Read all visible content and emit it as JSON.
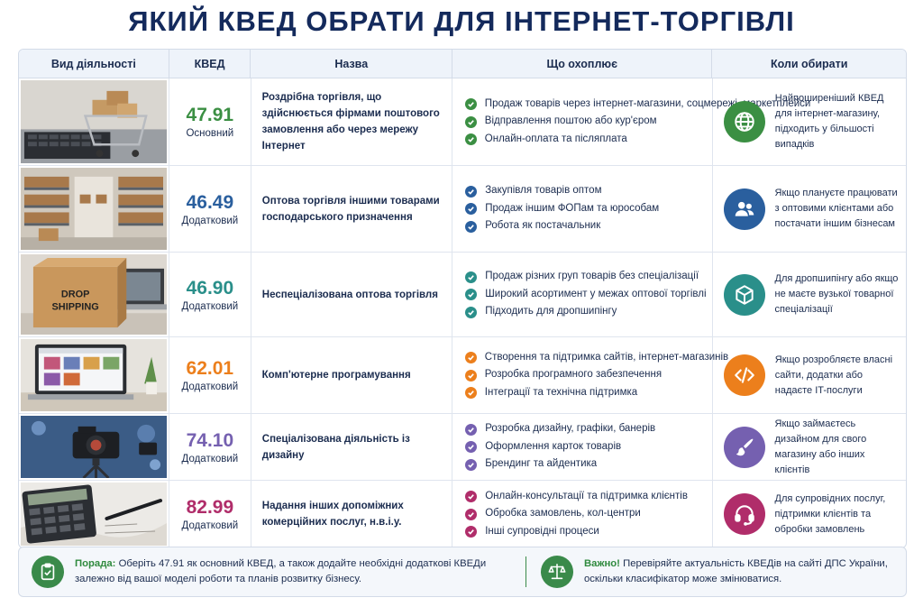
{
  "title": "ЯКИЙ КВЕД ОБРАТИ ДЛЯ ІНТЕРНЕТ-ТОРГІВЛІ",
  "headers": [
    "Вид діяльності",
    "КВЕД",
    "Назва",
    "Що охоплює",
    "Коли обирати"
  ],
  "rows": [
    {
      "code": "47.91",
      "type": "Основний",
      "color": "#3b8f43",
      "name": "Роздрібна торгівля, що здійснюється фірмами поштового замовлення або через мережу Інтернет",
      "items": [
        "Продаж товарів через інтернет-магазини, соцмережі, маркетплейси",
        "Відправлення поштою або кур'єром",
        "Онлайн-оплата та післяплата"
      ],
      "icon": "globe-icon",
      "when": "Найпоширеніший КВЕД для інтернет-магазину, підходить у більшості випадків"
    },
    {
      "code": "46.49",
      "type": "Додатковий",
      "color": "#2a5f9e",
      "name": "Оптова торгівля іншими товарами господарського призначення",
      "items": [
        "Закупівля товарів оптом",
        "Продаж іншим ФОПам та юрособам",
        "Робота як постачальник"
      ],
      "icon": "users-icon",
      "when": "Якщо плануєте працювати з оптовими клієнтами або постачати іншим бізнесам"
    },
    {
      "code": "46.90",
      "type": "Додатковий",
      "color": "#2a8f8a",
      "name": "Неспеціалізована оптова торгівля",
      "items": [
        "Продаж різних груп товарів без спеціалізації",
        "Широкий асортимент у межах оптової торгівлі",
        "Підходить для дропшипінгу"
      ],
      "icon": "box-icon",
      "when": "Для дропшипінгу або якщо не маєте вузької товарної спеціалізації"
    },
    {
      "code": "62.01",
      "type": "Додатковий",
      "color": "#ec7f1c",
      "name": "Комп'ютерне програмування",
      "items": [
        "Створення та підтримка сайтів, інтернет-магазинів",
        "Розробка програмного забезпечення",
        "Інтеграції та технічна підтримка"
      ],
      "icon": "code-icon",
      "when": "Якщо розробляєте власні сайти, додатки або надаєте IT-послуги"
    },
    {
      "code": "74.10",
      "type": "Додатковий",
      "color": "#7560b0",
      "name": "Спеціалізована діяльність із дизайну",
      "items": [
        "Розробка дизайну, графіки, банерів",
        "Оформлення карток товарів",
        "Брендинг та айдентика"
      ],
      "icon": "brush-icon",
      "when": "Якщо займаєтесь дизайном для свого магазину або інших клієнтів"
    },
    {
      "code": "82.99",
      "type": "Додатковий",
      "color": "#b02d6a",
      "name": "Надання інших допоміжних комерційних послуг, н.в.і.у.",
      "items": [
        "Онлайн-консультації та підтримка клієнтів",
        "Обробка замовлень, кол-центри",
        "Інші супровідні процеси"
      ],
      "icon": "headset-icon",
      "when": "Для супровідних послуг, підтримки клієнтів та обробки замовлень"
    }
  ],
  "tips": {
    "tip_label": "Порада:",
    "tip_text": "Оберіть 47.91 як основний КВЕД, а також додайте необхідні додаткові КВЕДи залежно від вашої моделі роботи та планів розвитку бізнесу.",
    "important_label": "Важно!",
    "important_text": "Перевіряйте актуальність КВЕДів на сайті ДПС України, оскільки класифікатор може змінюватися."
  }
}
